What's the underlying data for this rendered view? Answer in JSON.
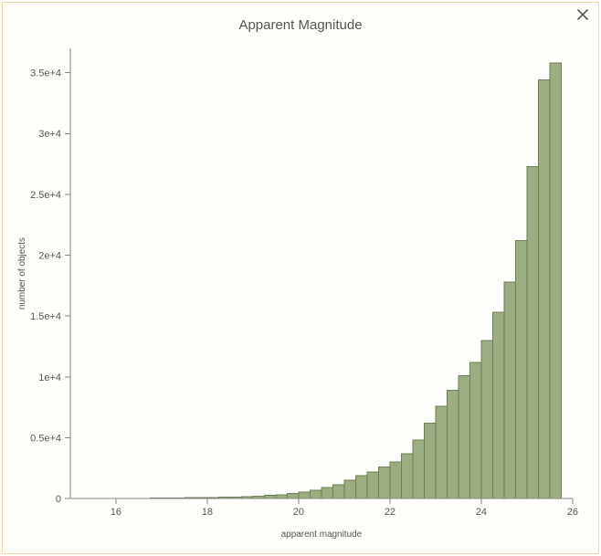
{
  "panel": {
    "title": "Apparent Magnitude",
    "border_color": "#f0d7b0",
    "background_color": "#fdfdf9"
  },
  "close_icon": {
    "stroke": "#555555"
  },
  "chart": {
    "type": "histogram",
    "xlabel": "apparent magnitude",
    "ylabel": "number of objects",
    "label_fontsize": 10,
    "tick_fontsize": 11,
    "xlim": [
      15,
      26
    ],
    "ylim": [
      0,
      37000
    ],
    "xtick_values": [
      16,
      18,
      20,
      22,
      24,
      26
    ],
    "ytick_values": [
      0,
      5000,
      10000,
      15000,
      20000,
      25000,
      30000,
      35000
    ],
    "ytick_labels": [
      "0",
      "0.5e+4",
      "1e+4",
      "1.5e+4",
      "2e+4",
      "2.5e+4",
      "3e+4",
      "3.5e+4"
    ],
    "bin_width": 0.25,
    "bar_fill": "#9cae81",
    "bar_stroke": "#6e7f59",
    "axis_color": "#888888",
    "text_color": "#555555",
    "background_color": "#fdfdf9",
    "bins": [
      {
        "x": 15.25,
        "count": 5
      },
      {
        "x": 15.5,
        "count": 8
      },
      {
        "x": 15.75,
        "count": 10
      },
      {
        "x": 16.0,
        "count": 14
      },
      {
        "x": 16.25,
        "count": 18
      },
      {
        "x": 16.5,
        "count": 24
      },
      {
        "x": 16.75,
        "count": 30
      },
      {
        "x": 17.0,
        "count": 45
      },
      {
        "x": 17.25,
        "count": 55
      },
      {
        "x": 17.5,
        "count": 60
      },
      {
        "x": 17.75,
        "count": 70
      },
      {
        "x": 18.0,
        "count": 80
      },
      {
        "x": 18.25,
        "count": 95
      },
      {
        "x": 18.5,
        "count": 110
      },
      {
        "x": 18.75,
        "count": 130
      },
      {
        "x": 19.0,
        "count": 160
      },
      {
        "x": 19.25,
        "count": 200
      },
      {
        "x": 19.5,
        "count": 260
      },
      {
        "x": 19.75,
        "count": 330
      },
      {
        "x": 20.0,
        "count": 420
      },
      {
        "x": 20.25,
        "count": 540
      },
      {
        "x": 20.5,
        "count": 700
      },
      {
        "x": 20.75,
        "count": 900
      },
      {
        "x": 21.0,
        "count": 1150
      },
      {
        "x": 21.25,
        "count": 1500
      },
      {
        "x": 21.5,
        "count": 1900
      },
      {
        "x": 21.75,
        "count": 2200
      },
      {
        "x": 22.0,
        "count": 2600
      },
      {
        "x": 22.25,
        "count": 3000
      },
      {
        "x": 22.5,
        "count": 3700
      },
      {
        "x": 22.75,
        "count": 4800
      },
      {
        "x": 23.0,
        "count": 6200
      },
      {
        "x": 23.25,
        "count": 7600
      },
      {
        "x": 23.5,
        "count": 8900
      },
      {
        "x": 23.75,
        "count": 10100
      },
      {
        "x": 24.0,
        "count": 11200
      },
      {
        "x": 24.25,
        "count": 13000
      },
      {
        "x": 24.5,
        "count": 15300
      },
      {
        "x": 24.75,
        "count": 17800
      },
      {
        "x": 25.0,
        "count": 21200
      },
      {
        "x": 25.25,
        "count": 27300
      },
      {
        "x": 25.5,
        "count": 34400
      },
      {
        "x": 25.75,
        "count": 35800
      }
    ]
  }
}
